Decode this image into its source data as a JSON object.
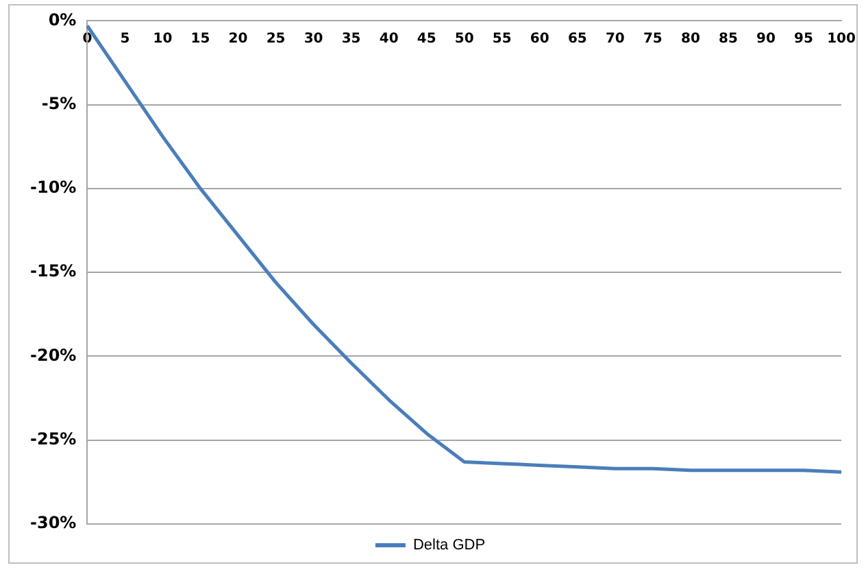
{
  "chart_data": {
    "type": "line",
    "categories": [
      "0",
      "5",
      "10",
      "15",
      "20",
      "25",
      "30",
      "35",
      "40",
      "45",
      "50",
      "55",
      "60",
      "65",
      "70",
      "75",
      "80",
      "85",
      "90",
      "95",
      "100"
    ],
    "series": [
      {
        "name": "Delta GDP",
        "color": "#4a7ebb",
        "values": [
          -0.3,
          -3.6,
          -6.9,
          -10.0,
          -12.8,
          -15.6,
          -18.1,
          -20.4,
          -22.6,
          -24.6,
          -26.3,
          -26.4,
          -26.5,
          -26.6,
          -26.7,
          -26.7,
          -26.8,
          -26.8,
          -26.8,
          -26.8,
          -26.9
        ]
      }
    ],
    "ylim": [
      -30,
      0
    ],
    "yticks": [
      {
        "value": -30,
        "label": "-30%"
      },
      {
        "value": -25,
        "label": "-25%"
      },
      {
        "value": -20,
        "label": "-20%"
      },
      {
        "value": -15,
        "label": "-15%"
      },
      {
        "value": -10,
        "label": "-10%"
      },
      {
        "value": -5,
        "label": "-5%"
      },
      {
        "value": 0,
        "label": "0%"
      }
    ],
    "grid": "y",
    "legend": "bottom",
    "marker": "none",
    "line_style": "solid"
  }
}
